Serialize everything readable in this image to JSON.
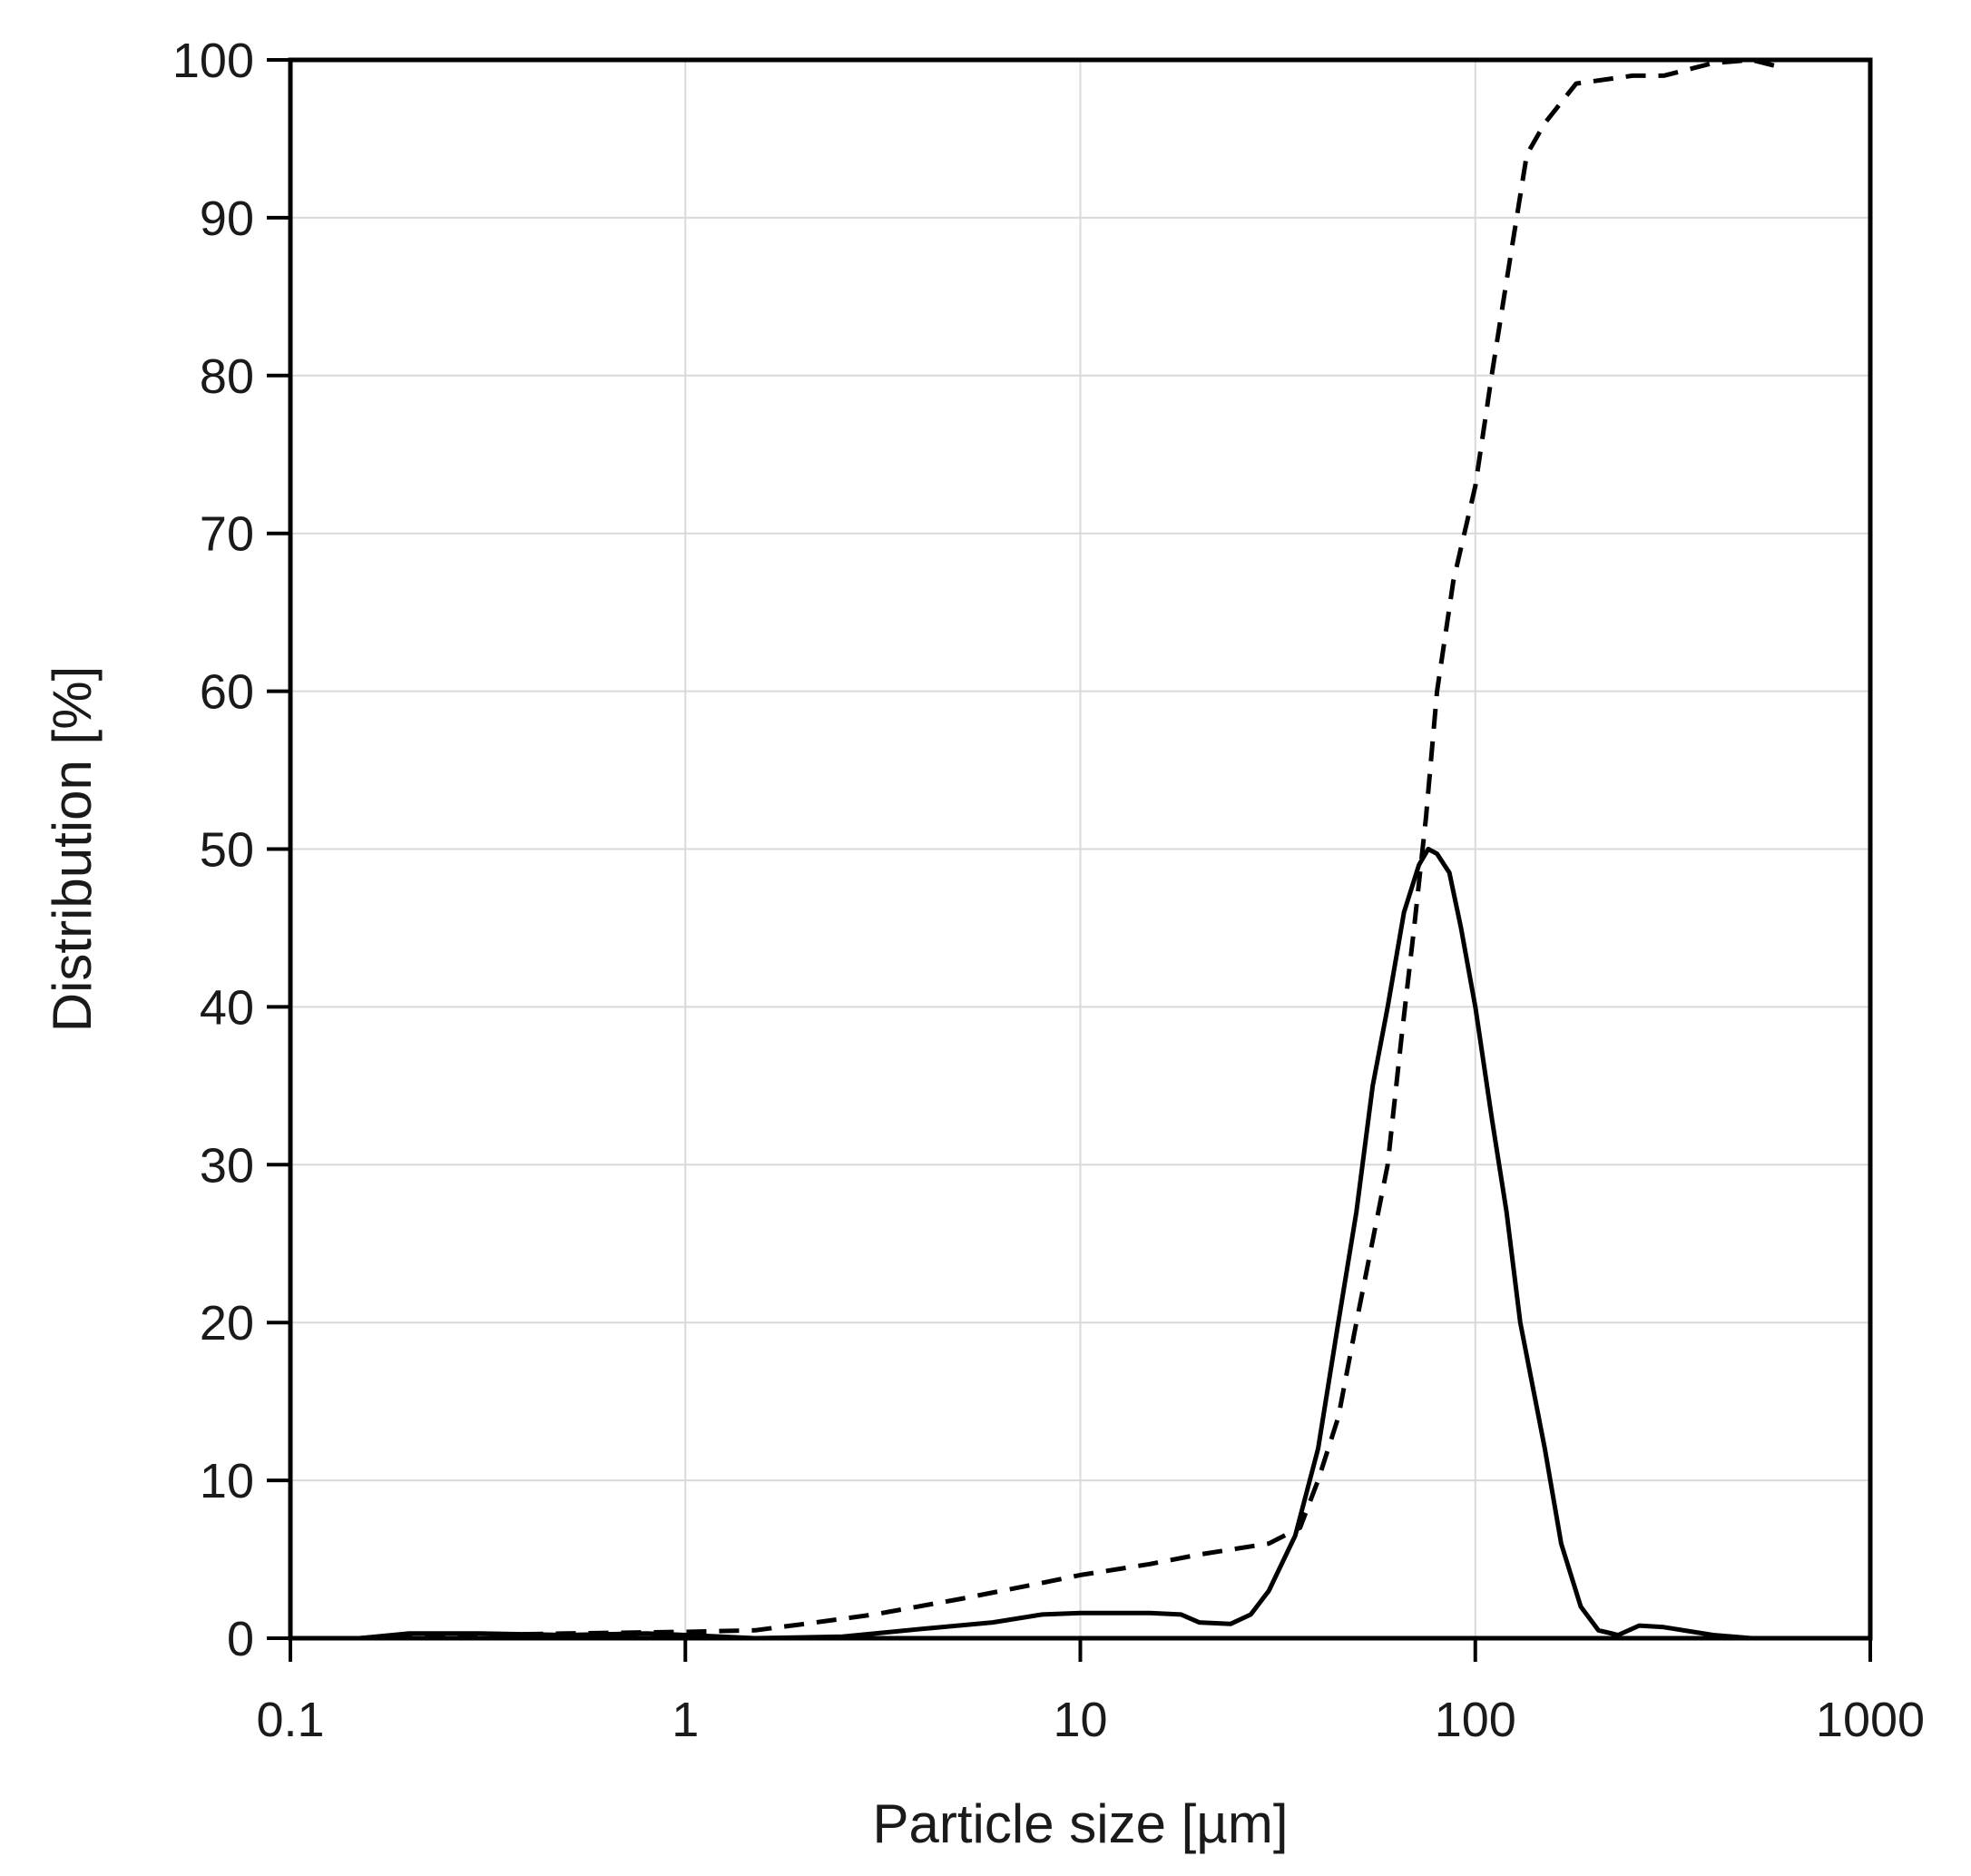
{
  "chart_data": {
    "type": "line",
    "title": "",
    "xlabel": "Particle size [µm]",
    "ylabel": "Distribution [%]",
    "x_scale": "log",
    "xlim": [
      0.1,
      1000
    ],
    "ylim": [
      0,
      100
    ],
    "x_ticks": [
      0.1,
      1,
      10,
      100,
      1000
    ],
    "x_tick_labels": [
      "0.1",
      "1",
      "10",
      "100",
      "1000"
    ],
    "y_ticks": [
      0,
      10,
      20,
      30,
      40,
      50,
      60,
      70,
      80,
      90,
      100
    ],
    "y_tick_labels": [
      "0",
      "10",
      "20",
      "30",
      "40",
      "50",
      "60",
      "70",
      "80",
      "90",
      "100"
    ],
    "grid": true,
    "series": [
      {
        "style": "solid",
        "color": "#000000",
        "points": [
          [
            0.15,
            0.0
          ],
          [
            0.2,
            0.3
          ],
          [
            0.3,
            0.3
          ],
          [
            0.5,
            0.2
          ],
          [
            0.8,
            0.3
          ],
          [
            1.0,
            0.2
          ],
          [
            1.5,
            0.0
          ],
          [
            2.5,
            0.1
          ],
          [
            4,
            0.6
          ],
          [
            6,
            1.0
          ],
          [
            8,
            1.5
          ],
          [
            10,
            1.6
          ],
          [
            15,
            1.6
          ],
          [
            18,
            1.5
          ],
          [
            20,
            1.0
          ],
          [
            24,
            0.9
          ],
          [
            27,
            1.5
          ],
          [
            30,
            3.0
          ],
          [
            35,
            6.5
          ],
          [
            40,
            12
          ],
          [
            45,
            20
          ],
          [
            50,
            27
          ],
          [
            55,
            35
          ],
          [
            60,
            40
          ],
          [
            66,
            46
          ],
          [
            72,
            49
          ],
          [
            76,
            50
          ],
          [
            80,
            49.7
          ],
          [
            86,
            48.5
          ],
          [
            92,
            45
          ],
          [
            100,
            40
          ],
          [
            110,
            33
          ],
          [
            120,
            27
          ],
          [
            130,
            20
          ],
          [
            150,
            12
          ],
          [
            165,
            6
          ],
          [
            185,
            2
          ],
          [
            205,
            0.5
          ],
          [
            230,
            0.2
          ],
          [
            260,
            0.8
          ],
          [
            300,
            0.7
          ],
          [
            400,
            0.2
          ],
          [
            500,
            0.0
          ]
        ]
      },
      {
        "style": "dashed",
        "color": "#000000",
        "points": [
          [
            0.15,
            0.0
          ],
          [
            0.2,
            0.2
          ],
          [
            0.3,
            0.2
          ],
          [
            0.5,
            0.3
          ],
          [
            1.0,
            0.4
          ],
          [
            1.5,
            0.5
          ],
          [
            2,
            0.9
          ],
          [
            3,
            1.5
          ],
          [
            5,
            2.5
          ],
          [
            8,
            3.5
          ],
          [
            10,
            4.0
          ],
          [
            15,
            4.7
          ],
          [
            20,
            5.3
          ],
          [
            30,
            6.0
          ],
          [
            36,
            7.0
          ],
          [
            40,
            10
          ],
          [
            45,
            14
          ],
          [
            50,
            20
          ],
          [
            60,
            30
          ],
          [
            65,
            38
          ],
          [
            70,
            45
          ],
          [
            75,
            52
          ],
          [
            80,
            60
          ],
          [
            88,
            67
          ],
          [
            100,
            73
          ],
          [
            110,
            80
          ],
          [
            120,
            86
          ],
          [
            135,
            94
          ],
          [
            150,
            96
          ],
          [
            180,
            98.5
          ],
          [
            250,
            99
          ],
          [
            300,
            99
          ],
          [
            400,
            99.8
          ],
          [
            500,
            100
          ],
          [
            580,
            99.6
          ]
        ]
      }
    ]
  }
}
